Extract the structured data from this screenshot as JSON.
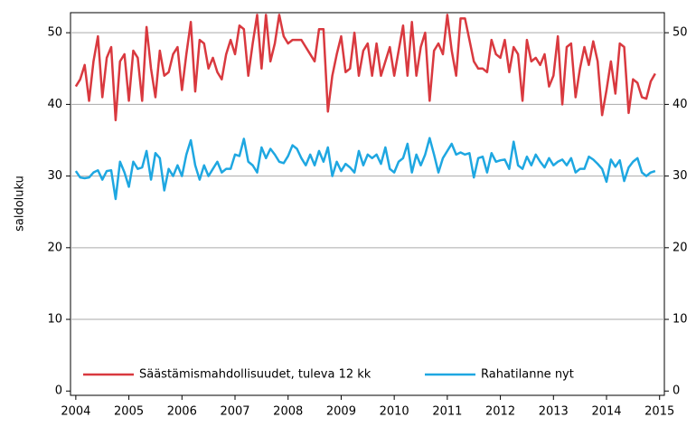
{
  "chart_data": {
    "type": "line",
    "y_label": "saldoluku",
    "x": [
      2004,
      2004.083,
      2004.167,
      2004.25,
      2004.333,
      2004.417,
      2004.5,
      2004.583,
      2004.667,
      2004.75,
      2004.833,
      2004.917,
      2005,
      2005.083,
      2005.167,
      2005.25,
      2005.333,
      2005.417,
      2005.5,
      2005.583,
      2005.667,
      2005.75,
      2005.833,
      2005.917,
      2006,
      2006.083,
      2006.167,
      2006.25,
      2006.333,
      2006.417,
      2006.5,
      2006.583,
      2006.667,
      2006.75,
      2006.833,
      2006.917,
      2007,
      2007.083,
      2007.167,
      2007.25,
      2007.333,
      2007.417,
      2007.5,
      2007.583,
      2007.667,
      2007.75,
      2007.833,
      2007.917,
      2008,
      2008.083,
      2008.167,
      2008.25,
      2008.333,
      2008.417,
      2008.5,
      2008.583,
      2008.667,
      2008.75,
      2008.833,
      2008.917,
      2009,
      2009.083,
      2009.167,
      2009.25,
      2009.333,
      2009.417,
      2009.5,
      2009.583,
      2009.667,
      2009.75,
      2009.833,
      2009.917,
      2010,
      2010.083,
      2010.167,
      2010.25,
      2010.333,
      2010.417,
      2010.5,
      2010.583,
      2010.667,
      2010.75,
      2010.833,
      2010.917,
      2011,
      2011.083,
      2011.167,
      2011.25,
      2011.333,
      2011.417,
      2011.5,
      2011.583,
      2011.667,
      2011.75,
      2011.833,
      2011.917,
      2012,
      2012.083,
      2012.167,
      2012.25,
      2012.333,
      2012.417,
      2012.5,
      2012.583,
      2012.667,
      2012.75,
      2012.833,
      2012.917,
      2013,
      2013.083,
      2013.167,
      2013.25,
      2013.333,
      2013.417,
      2013.5,
      2013.583,
      2013.667,
      2013.75,
      2013.833,
      2013.917,
      2014,
      2014.083,
      2014.167,
      2014.25,
      2014.333,
      2014.417,
      2014.5,
      2014.583,
      2014.667,
      2014.75,
      2014.833,
      2014.917
    ],
    "series": [
      {
        "name": "Säästämismahdollisuudet, tuleva 12 kk",
        "color": "#d9393f",
        "values": [
          42.5,
          43.5,
          45.5,
          40.5,
          46,
          49.5,
          41,
          46.5,
          48,
          37.8,
          46,
          47,
          40.5,
          47.5,
          46.5,
          40.5,
          50.8,
          45,
          41,
          47.5,
          44,
          44.5,
          47,
          48,
          42,
          47,
          51.5,
          41.8,
          49,
          48.5,
          45,
          46.5,
          44.5,
          43.5,
          47,
          49,
          47,
          51,
          50.5,
          44,
          48.5,
          52.5,
          45,
          52.5,
          46,
          48.5,
          52.5,
          49.5,
          48.5,
          49,
          49,
          49,
          48,
          47,
          46,
          50.5,
          50.5,
          39,
          44,
          47,
          49.5,
          44.5,
          45,
          50,
          44,
          47.5,
          48.5,
          44,
          48.5,
          44,
          46,
          48,
          44,
          47.5,
          51,
          44,
          51.5,
          44,
          48,
          50,
          40.5,
          47.5,
          48.5,
          47,
          52.5,
          47.5,
          44,
          52,
          52,
          49,
          46,
          45,
          45,
          44.5,
          49,
          47,
          46.5,
          49,
          44.5,
          48,
          47,
          40.5,
          49,
          46,
          46.5,
          45.5,
          47,
          42.5,
          44,
          49.5,
          40,
          48,
          48.5,
          41,
          45,
          48,
          45.5,
          48.8,
          46,
          38.5,
          42,
          46,
          41.5,
          48.5,
          48,
          38.8,
          43.5,
          43,
          41,
          40.8,
          43.2,
          44.3
        ]
      },
      {
        "name": "Rahatilanne nyt",
        "color": "#1ea7e1",
        "values": [
          30.7,
          29.8,
          29.7,
          29.8,
          30.5,
          30.8,
          29.5,
          30.7,
          30.8,
          26.8,
          32,
          30.5,
          28.5,
          32,
          31,
          31.2,
          33.5,
          29.5,
          33.2,
          32.5,
          28,
          31,
          30,
          31.5,
          30,
          33,
          35,
          31.5,
          29.5,
          31.5,
          30,
          31,
          32,
          30.5,
          31,
          31,
          33,
          32.8,
          35.2,
          32,
          31.5,
          30.5,
          34,
          32.5,
          33.8,
          33,
          32,
          31.8,
          32.8,
          34.3,
          33.8,
          32.5,
          31.5,
          33,
          31.5,
          33.5,
          32,
          34,
          30,
          32,
          30.7,
          31.7,
          31.2,
          30.5,
          33.5,
          31.5,
          33,
          32.5,
          33,
          31.7,
          34,
          31,
          30.5,
          32,
          32.5,
          34.5,
          30.5,
          33,
          31.5,
          33,
          35.3,
          33,
          30.5,
          32.5,
          33.5,
          34.5,
          33,
          33.3,
          33,
          33.2,
          29.8,
          32.5,
          32.7,
          30.5,
          33.2,
          32,
          32.2,
          32.3,
          31,
          34.8,
          31.5,
          31,
          32.7,
          31.5,
          33,
          32,
          31.2,
          32.5,
          31.5,
          32,
          32.3,
          31.5,
          32.5,
          30.5,
          31,
          31,
          32.7,
          32.3,
          31.7,
          31,
          29.2,
          32.3,
          31.3,
          32.2,
          29.3,
          31.2,
          32,
          32.5,
          30.5,
          30,
          30.5,
          30.7
        ]
      }
    ],
    "xlim": [
      2003.9,
      2015.09
    ],
    "xticks": [
      2004,
      2005,
      2006,
      2007,
      2008,
      2009,
      2010,
      2011,
      2012,
      2013,
      2014,
      2015
    ],
    "ylim": [
      -0.6,
      52.8
    ],
    "yticks": [
      0,
      10,
      20,
      30,
      40,
      50
    ],
    "y2lim": [
      -0.6,
      52.8
    ],
    "y2ticks": [
      0,
      10,
      20,
      30,
      40,
      50
    ],
    "grid": true,
    "legend": "bottom"
  }
}
